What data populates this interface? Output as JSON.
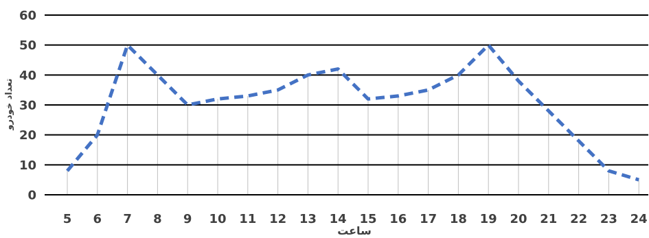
{
  "chart_data": {
    "type": "line",
    "title": "",
    "xlabel": "ساعت",
    "ylabel": "تعداد خودرو",
    "x": [
      5,
      6,
      7,
      8,
      9,
      10,
      11,
      12,
      13,
      14,
      15,
      16,
      17,
      18,
      19,
      20,
      21,
      22,
      23,
      24
    ],
    "series": [
      {
        "values": [
          8,
          20,
          50,
          40,
          30,
          32,
          33,
          35,
          40,
          42,
          32,
          33,
          35,
          40,
          50,
          38,
          28,
          18,
          8,
          5
        ]
      }
    ],
    "ylim": [
      0,
      60
    ],
    "yticks": [
      0,
      10,
      20,
      30,
      40,
      50,
      60
    ],
    "grid": true,
    "line_style": "dashed",
    "drop_lines": true,
    "legend": "none",
    "colors": {
      "series": "#4472C4",
      "grid": "#000000",
      "drop_lines": "#BFBFBF",
      "text": "#404040"
    }
  }
}
